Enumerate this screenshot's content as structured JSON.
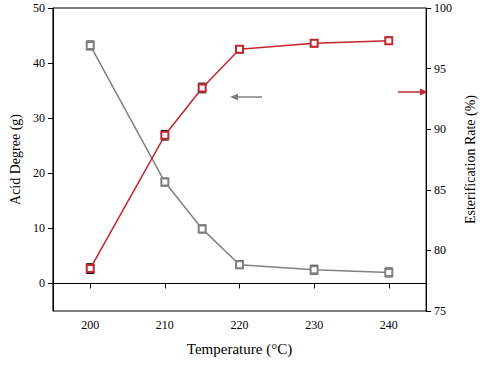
{
  "chart_data": {
    "type": "line",
    "x": [
      200,
      210,
      215,
      220,
      230,
      240
    ],
    "xlabel": "Temperature (°C)",
    "ylabel": "Acid Degree (g)",
    "y2label": "Esterification Rate (%)",
    "xlim": [
      195,
      245
    ],
    "xticks": [
      200,
      210,
      220,
      230,
      240
    ],
    "ylim": [
      -5,
      50
    ],
    "yticks": [
      0,
      10,
      20,
      30,
      40,
      50
    ],
    "y2lim": [
      75,
      100
    ],
    "y2ticks": [
      75,
      80,
      85,
      90,
      95,
      100
    ],
    "grid": false,
    "marker": "square",
    "line_style": "solid",
    "series": [
      {
        "color": "#808080",
        "values": [
          43.2,
          18.4,
          9.9,
          3.4,
          2.5,
          2.0
        ],
        "errors": [
          0.8,
          0.7,
          0.7,
          0.7,
          0.8,
          0.8
        ]
      },
      {
        "color": "#c0262c",
        "axis": "y2",
        "values": [
          78.5,
          89.5,
          93.4,
          96.6,
          97.1,
          97.3
        ],
        "errors": [
          0.4,
          0.4,
          0.4,
          0.3,
          0.3,
          0.3
        ]
      }
    ]
  }
}
